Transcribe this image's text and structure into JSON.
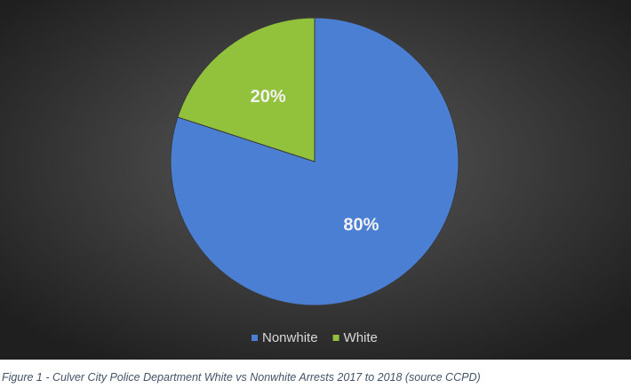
{
  "chart_data": {
    "type": "pie",
    "categories": [
      "Nonwhite",
      "White"
    ],
    "values": [
      80,
      20
    ],
    "value_labels": [
      "80%",
      "20%"
    ],
    "colors": [
      "#4a7fd4",
      "#92c13c"
    ],
    "caption": "Figure 1 - Culver City Police Department White vs Nonwhite Arrests 2017 to 2018 (source CCPD)"
  }
}
